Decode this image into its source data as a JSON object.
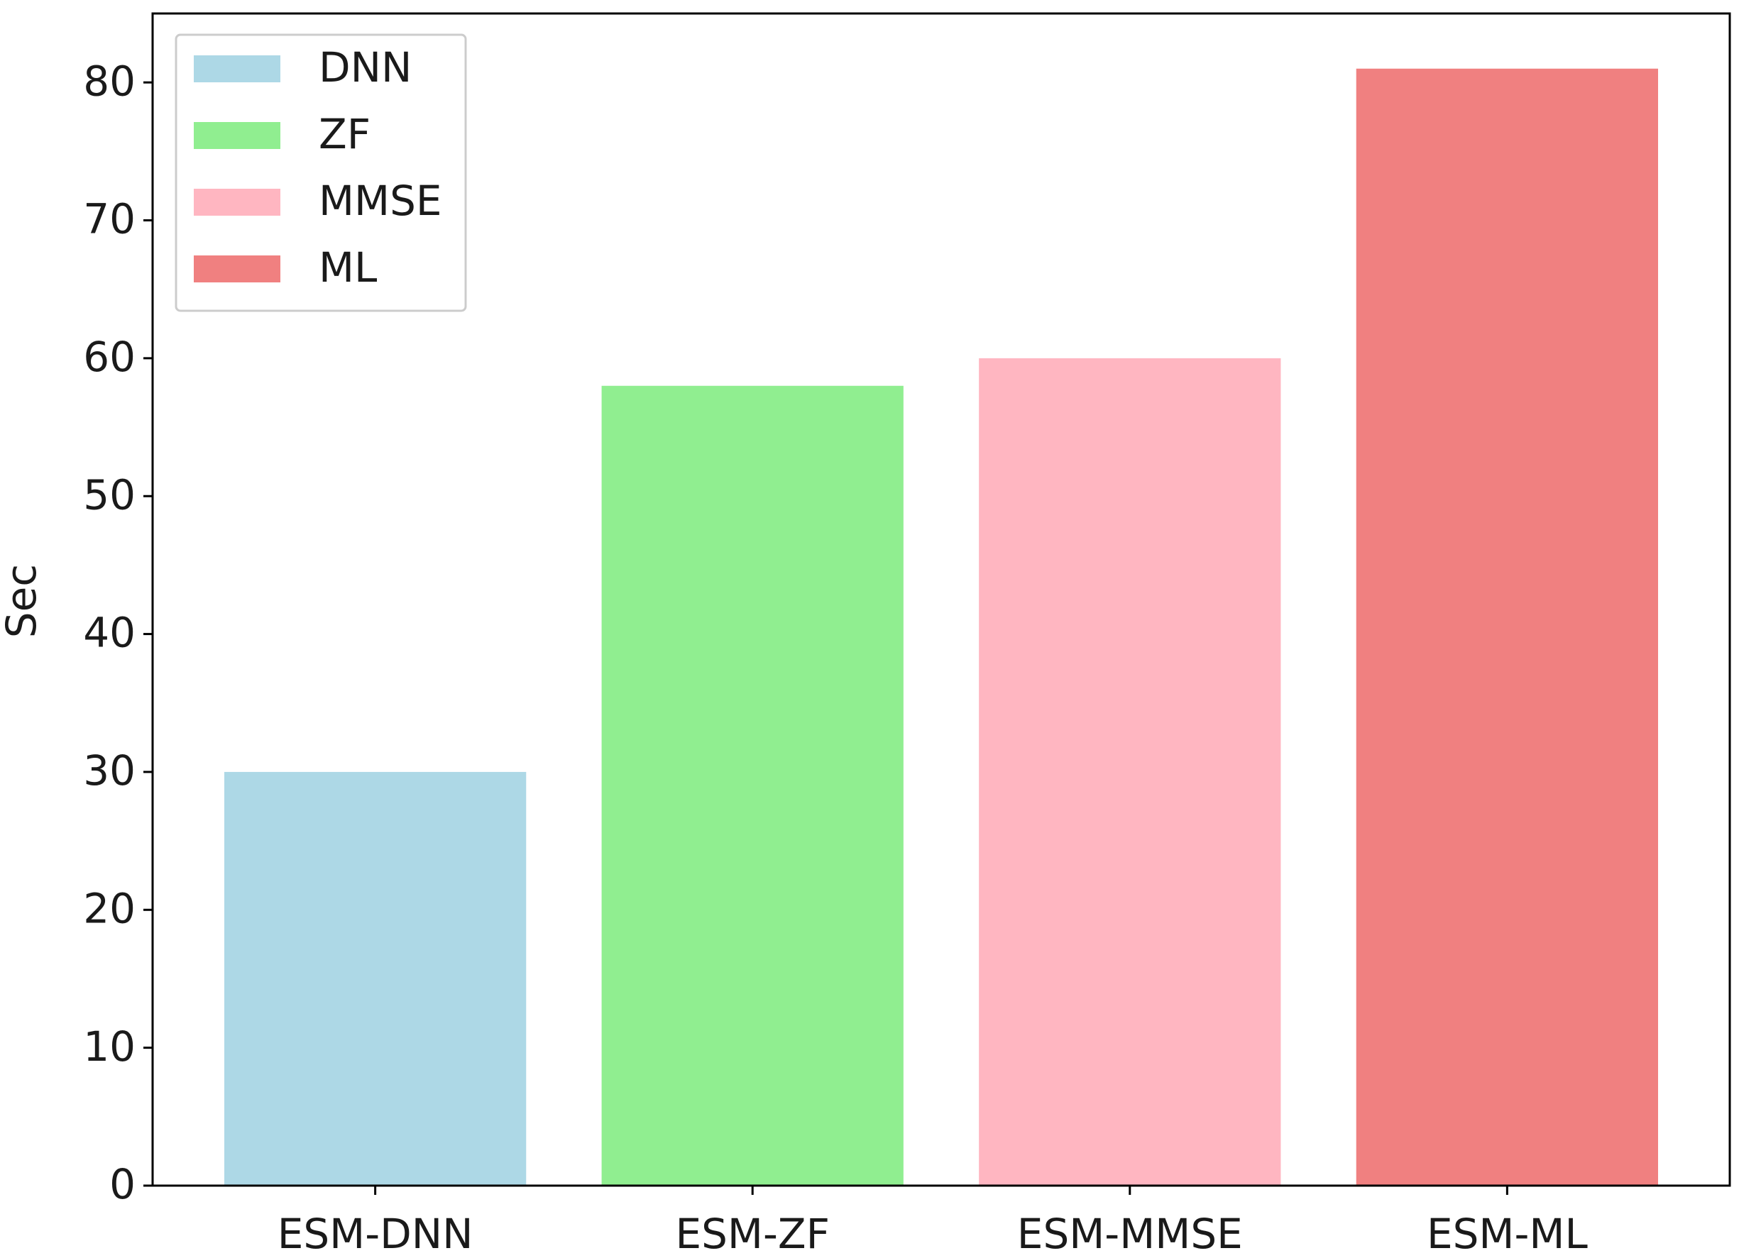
{
  "chart_data": {
    "type": "bar",
    "ylabel": "Sec",
    "categories": [
      "ESM-DNN",
      "ESM-ZF",
      "ESM-MMSE",
      "ESM-ML"
    ],
    "values": [
      30,
      58,
      60,
      81
    ],
    "colors": [
      "#add8e6",
      "#90ee90",
      "#ffb6c1",
      "#f08080"
    ],
    "legend": [
      "DNN",
      "ZF",
      "MMSE",
      "ML"
    ],
    "legend_loc": "upper left",
    "ylim": [
      0,
      85
    ],
    "yticks": [
      0,
      10,
      20,
      30,
      40,
      50,
      60,
      70,
      80
    ],
    "grid": false
  }
}
